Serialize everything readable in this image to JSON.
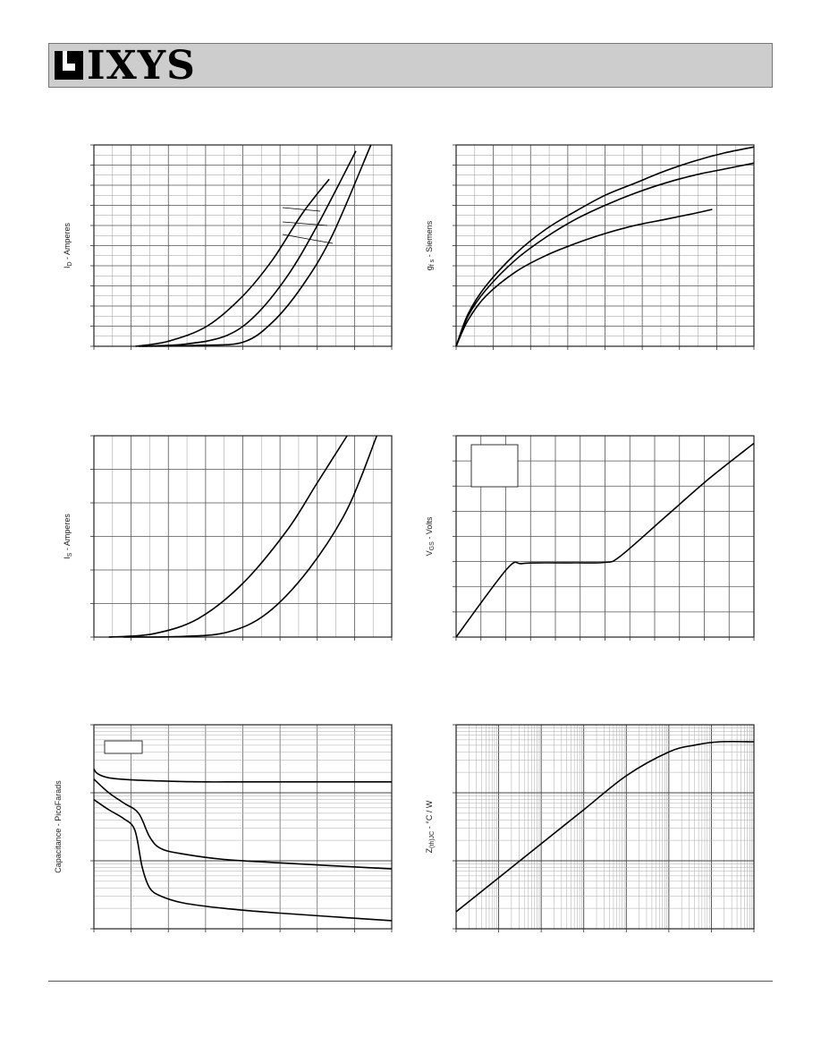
{
  "brand": {
    "name": "IXYS"
  },
  "charts": [
    {
      "id": "drain-current",
      "ylabel": "I_D - Amperes",
      "ylabel_main": "I",
      "ylabel_sub": "D",
      "ylabel_rest": " - Amperes"
    },
    {
      "id": "transconductance",
      "ylabel": "g_fs - Siemens",
      "ylabel_main": "g",
      "ylabel_sub": "f s",
      "ylabel_rest": " - Siemens"
    },
    {
      "id": "source-current",
      "ylabel": "I_S - Amperes",
      "ylabel_main": "I",
      "ylabel_sub": "S",
      "ylabel_rest": " - Amperes"
    },
    {
      "id": "gate-charge",
      "ylabel": "V_GS - Volts",
      "ylabel_main": "V",
      "ylabel_sub": "GS",
      "ylabel_rest": " - Volts"
    },
    {
      "id": "capacitance",
      "ylabel": "Capacitance - PicoFarads",
      "ylabel_main": "Capacitance - PicoFarads",
      "ylabel_sub": "",
      "ylabel_rest": ""
    },
    {
      "id": "thermal-impedance",
      "ylabel": "Z_(th)JC - °C / W",
      "ylabel_main": "Z",
      "ylabel_sub": "(th)JC",
      "ylabel_rest": " - °C / W"
    }
  ],
  "chart_data": [
    {
      "type": "line",
      "id": "drain-current",
      "xlim": [
        0,
        10
      ],
      "ylim": [
        0,
        10
      ],
      "grid": true,
      "series": [
        {
          "x": [
            1.4,
            2.5,
            3.8,
            5,
            6,
            7,
            7.9
          ],
          "y": [
            0,
            0.25,
            1.0,
            2.5,
            4.3,
            6.6,
            8.3
          ]
        },
        {
          "x": [
            1.5,
            3,
            4.4,
            5.4,
            6.5,
            7.5,
            8.8
          ],
          "y": [
            0,
            0.1,
            0.5,
            1.5,
            3.5,
            6.0,
            9.7
          ]
        },
        {
          "x": [
            1.6,
            3.5,
            5,
            6,
            7,
            8,
            9.3
          ],
          "y": [
            0,
            0.05,
            0.2,
            1.2,
            3.0,
            5.5,
            10
          ]
        }
      ]
    },
    {
      "type": "line",
      "id": "transconductance",
      "xlim": [
        0,
        10
      ],
      "ylim": [
        0,
        10
      ],
      "grid": true,
      "series": [
        {
          "x": [
            0,
            0.4,
            1,
            2,
            3,
            4,
            5,
            6,
            7,
            8,
            9,
            10
          ],
          "y": [
            0,
            1.6,
            3.0,
            4.6,
            5.8,
            6.7,
            7.5,
            8.1,
            8.7,
            9.2,
            9.6,
            9.9
          ]
        },
        {
          "x": [
            0,
            0.4,
            1,
            2,
            3,
            4,
            5,
            6,
            7,
            8,
            9,
            10
          ],
          "y": [
            0,
            1.5,
            2.8,
            4.3,
            5.4,
            6.3,
            7.0,
            7.6,
            8.1,
            8.5,
            8.8,
            9.1
          ]
        },
        {
          "x": [
            0,
            0.4,
            1,
            2,
            3,
            4,
            5,
            6,
            7,
            8,
            8.6
          ],
          "y": [
            0,
            1.3,
            2.5,
            3.7,
            4.5,
            5.1,
            5.6,
            6.0,
            6.3,
            6.6,
            6.8
          ]
        }
      ]
    },
    {
      "type": "line",
      "id": "source-current",
      "xlim": [
        0,
        10
      ],
      "ylim": [
        0,
        6
      ],
      "grid": true,
      "series": [
        {
          "x": [
            0.5,
            2,
            3.5,
            5,
            6.5,
            7.5,
            8.5
          ],
          "y": [
            0,
            0.1,
            0.55,
            1.6,
            3.2,
            4.6,
            6.0
          ]
        },
        {
          "x": [
            1,
            3,
            4.5,
            5.8,
            7.2,
            8.5,
            9.5
          ],
          "y": [
            0,
            0.02,
            0.15,
            0.7,
            2.0,
            3.8,
            6.0
          ]
        }
      ]
    },
    {
      "type": "line",
      "id": "gate-charge",
      "xlim": [
        0,
        10
      ],
      "ylim": [
        0,
        8
      ],
      "grid": true,
      "series": [
        {
          "x": [
            0,
            1.7,
            2.2,
            3,
            4,
            5,
            5.5,
            7,
            8.5,
            10
          ],
          "y": [
            0,
            2.7,
            2.92,
            2.95,
            2.95,
            2.97,
            3.2,
            4.75,
            6.3,
            7.7
          ]
        }
      ]
    },
    {
      "type": "line",
      "id": "capacitance",
      "xlim": [
        0,
        8
      ],
      "ylim": [
        0,
        3
      ],
      "grid": true,
      "series": [
        {
          "x": [
            0,
            0.1,
            0.4,
            1,
            2,
            3,
            4,
            6,
            8
          ],
          "y": [
            2.35,
            2.28,
            2.22,
            2.19,
            2.17,
            2.16,
            2.16,
            2.16,
            2.16
          ]
        },
        {
          "x": [
            0,
            0.4,
            0.8,
            1.2,
            1.5,
            1.8,
            2.4,
            3.5,
            5,
            8
          ],
          "y": [
            2.2,
            2.0,
            1.85,
            1.7,
            1.35,
            1.18,
            1.1,
            1.02,
            0.97,
            0.88
          ]
        },
        {
          "x": [
            0,
            0.4,
            0.8,
            1.1,
            1.3,
            1.5,
            1.8,
            2.4,
            3.5,
            5,
            8
          ],
          "y": [
            1.9,
            1.75,
            1.62,
            1.45,
            0.9,
            0.6,
            0.48,
            0.38,
            0.3,
            0.23,
            0.12
          ]
        }
      ]
    },
    {
      "type": "line",
      "id": "thermal-impedance",
      "xlim": [
        0,
        7
      ],
      "ylim": [
        0,
        3
      ],
      "grid": true,
      "xscale": "log",
      "yscale": "log",
      "series": [
        {
          "x": [
            0,
            1,
            2,
            3,
            4,
            5,
            5.6,
            6.2,
            7
          ],
          "y": [
            0.25,
            0.75,
            1.25,
            1.75,
            2.25,
            2.6,
            2.7,
            2.75,
            2.75
          ]
        }
      ]
    }
  ]
}
